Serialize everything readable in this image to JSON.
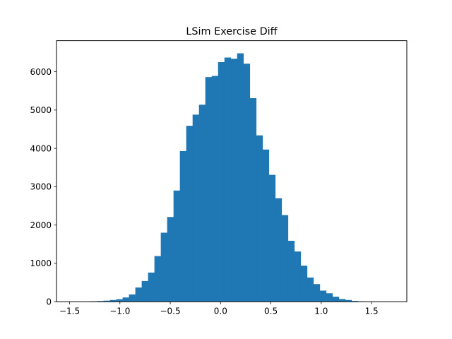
{
  "chart_data": {
    "type": "bar",
    "title": "LSim Exercise Diff",
    "xlabel": "",
    "ylabel": "",
    "bar_color": "#1f77b4",
    "xlim": [
      -1.63,
      1.85
    ],
    "ylim": [
      0,
      6810
    ],
    "x_ticks": [
      -1.5,
      -1.0,
      -0.5,
      0.0,
      0.5,
      1.0,
      1.5
    ],
    "x_tick_labels": [
      "−1.5",
      "−1.0",
      "−0.5",
      "0.0",
      "0.5",
      "1.0",
      "1.5"
    ],
    "y_ticks": [
      0,
      1000,
      2000,
      3000,
      4000,
      5000,
      6000
    ],
    "y_tick_labels": [
      "0",
      "1000",
      "2000",
      "3000",
      "4000",
      "5000",
      "6000"
    ],
    "bin_edges": [
      -1.4788,
      -1.4156,
      -1.3524,
      -1.2892,
      -1.226,
      -1.1628,
      -1.0996,
      -1.0364,
      -0.9732,
      -0.91,
      -0.8468,
      -0.7836,
      -0.7204,
      -0.6572,
      -0.594,
      -0.5308,
      -0.4676,
      -0.4044,
      -0.3412,
      -0.278,
      -0.2148,
      -0.1516,
      -0.0884,
      -0.0252,
      0.038,
      0.1012,
      0.1644,
      0.2276,
      0.2908,
      0.354,
      0.4172,
      0.4804,
      0.5436,
      0.6068,
      0.67,
      0.7332,
      0.7964,
      0.8596,
      0.9228,
      0.986,
      1.0492,
      1.1124,
      1.1756,
      1.2388,
      1.302,
      1.3652,
      1.4284,
      1.4916,
      1.5548,
      1.618,
      1.6812,
      1.7444
    ],
    "values": [
      2,
      3,
      5,
      10,
      18,
      27,
      45,
      65,
      110,
      190,
      370,
      540,
      760,
      1190,
      1800,
      2210,
      2900,
      3930,
      4590,
      4880,
      5140,
      5860,
      5890,
      6250,
      6370,
      6340,
      6480,
      6210,
      5310,
      4340,
      3970,
      3310,
      2700,
      2260,
      1590,
      1310,
      940,
      630,
      460,
      290,
      220,
      130,
      70,
      45,
      20,
      8,
      4,
      2,
      1,
      1,
      1
    ]
  }
}
